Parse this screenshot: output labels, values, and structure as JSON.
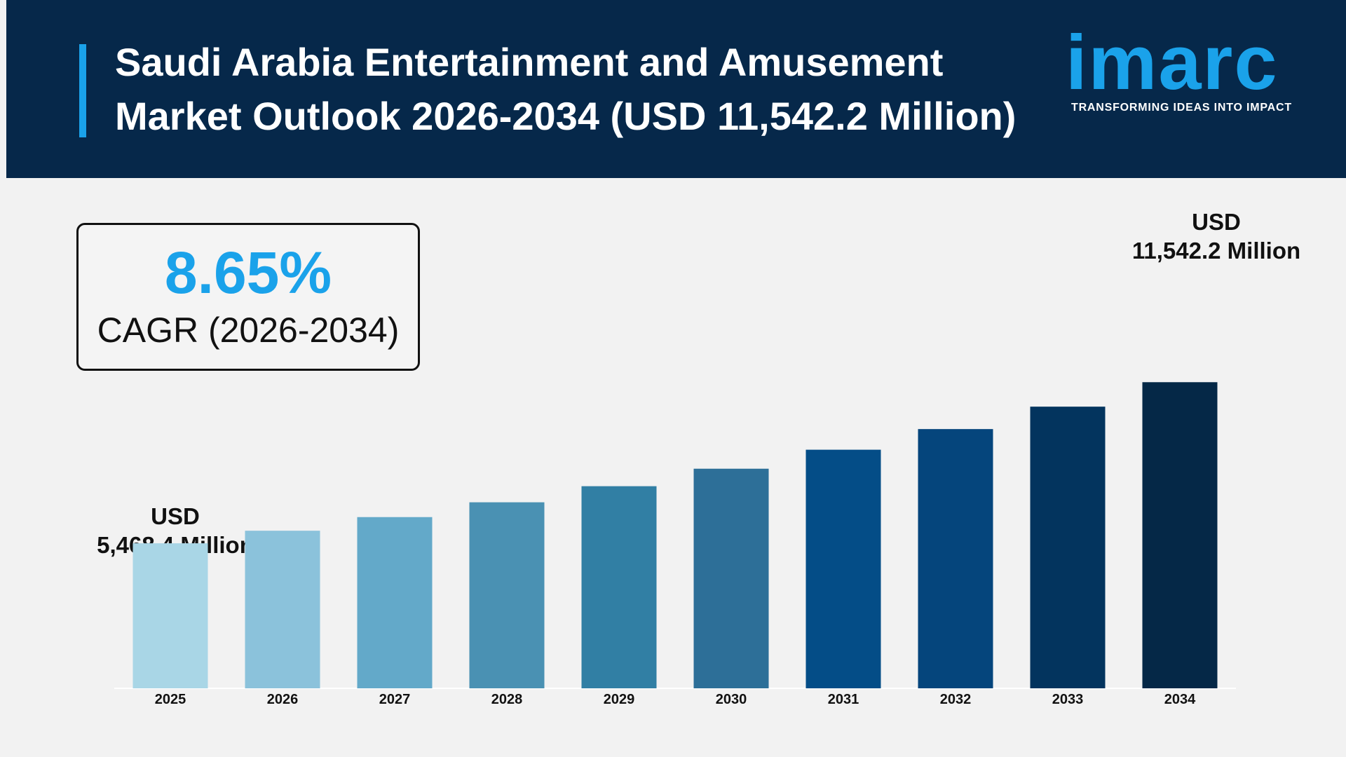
{
  "header": {
    "title_line1": "Saudi Arabia Entertainment and Amusement",
    "title_line2": "Market Outlook 2026-2034 (USD 11,542.2 Million)"
  },
  "logo": {
    "word": "imarc",
    "tagline": "TRANSFORMING IDEAS INTO IMPACT"
  },
  "cagr": {
    "value": "8.65%",
    "label": "CAGR (2026-2034)"
  },
  "callouts": {
    "start_line1": "USD",
    "start_line2": "5,468.4 Million",
    "end_line1": "USD",
    "end_line2": "11,542.2 Million"
  },
  "colors": {
    "header_bg": "#06284a",
    "accent": "#1aa2ea",
    "background": "#f2f2f2"
  },
  "chart_data": {
    "type": "bar",
    "categories": [
      "2025",
      "2026",
      "2027",
      "2028",
      "2029",
      "2030",
      "2031",
      "2032",
      "2033",
      "2034"
    ],
    "values": [
      5468.4,
      5941.5,
      6455.5,
      7014,
      7620.7,
      8279.9,
      8996.2,
      9774.4,
      10619.9,
      11542.2
    ],
    "bar_colors": [
      "#a9d6e6",
      "#8bc2db",
      "#63a9c9",
      "#4a91b3",
      "#317fa4",
      "#2d6f98",
      "#044d87",
      "#05457c",
      "#03345e",
      "#052847"
    ],
    "title": "",
    "xlabel": "",
    "ylabel": "",
    "ylim": [
      0,
      14800
    ],
    "grid": false,
    "legend": "none"
  }
}
